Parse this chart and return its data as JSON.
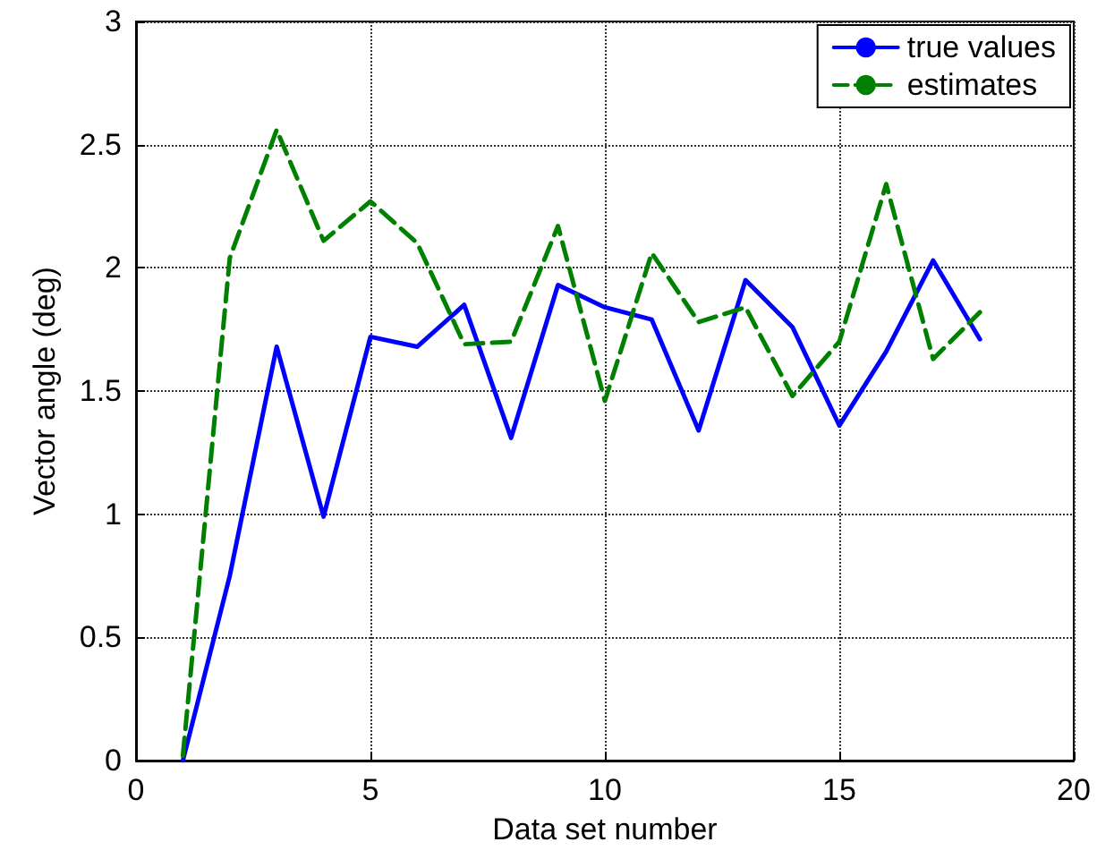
{
  "chart_data": {
    "type": "line",
    "xlabel": "Data set number",
    "ylabel": "Vector angle (deg)",
    "x": [
      1,
      2,
      3,
      4,
      5,
      6,
      7,
      8,
      9,
      10,
      11,
      12,
      13,
      14,
      15,
      16,
      17,
      18
    ],
    "series": [
      {
        "name": "true values",
        "color": "#0000ff",
        "line_style": "solid",
        "values": [
          0,
          0.75,
          1.68,
          0.99,
          1.72,
          1.68,
          1.85,
          1.31,
          1.93,
          1.84,
          1.79,
          1.34,
          1.95,
          1.76,
          1.36,
          1.66,
          2.03,
          1.71
        ]
      },
      {
        "name": "estimates",
        "color": "#008000",
        "line_style": "dashed",
        "values": [
          0.02,
          2.04,
          2.56,
          2.11,
          2.27,
          2.1,
          1.69,
          1.7,
          2.17,
          1.46,
          2.06,
          1.78,
          1.84,
          1.48,
          1.7,
          2.34,
          1.63,
          1.82
        ]
      }
    ],
    "xlim": [
      0,
      20
    ],
    "xticks": [
      0,
      5,
      10,
      15,
      20
    ],
    "ylim": [
      0,
      3
    ],
    "yticks": [
      0,
      0.5,
      1,
      1.5,
      2,
      2.5,
      3
    ],
    "grid": true,
    "legend": "top right",
    "marker": "none"
  }
}
